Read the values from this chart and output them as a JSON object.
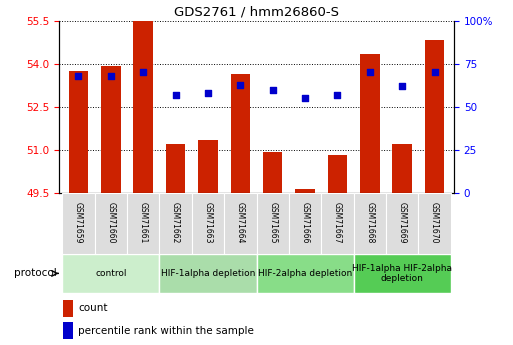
{
  "title": "GDS2761 / hmm26860-S",
  "samples": [
    "GSM71659",
    "GSM71660",
    "GSM71661",
    "GSM71662",
    "GSM71663",
    "GSM71664",
    "GSM71665",
    "GSM71666",
    "GSM71667",
    "GSM71668",
    "GSM71669",
    "GSM71670"
  ],
  "counts": [
    53.75,
    53.92,
    55.5,
    51.2,
    51.35,
    53.65,
    50.93,
    49.65,
    50.82,
    54.35,
    51.2,
    54.82
  ],
  "percentile_ranks": [
    68,
    68,
    70,
    57,
    58,
    63,
    60,
    55,
    57,
    70,
    62,
    70
  ],
  "y_min": 49.5,
  "y_max": 55.5,
  "y_ticks": [
    49.5,
    51.0,
    52.5,
    54.0,
    55.5
  ],
  "y_right_ticks": [
    0,
    25,
    50,
    75,
    100
  ],
  "bar_color": "#cc2200",
  "dot_color": "#0000cc",
  "bar_width": 0.6,
  "protocol_groups": [
    {
      "label": "control",
      "start": 0,
      "end": 2,
      "color": "#cceecc"
    },
    {
      "label": "HIF-1alpha depletion",
      "start": 3,
      "end": 5,
      "color": "#aaddaa"
    },
    {
      "label": "HIF-2alpha depletion",
      "start": 6,
      "end": 8,
      "color": "#88dd88"
    },
    {
      "label": "HIF-1alpha HIF-2alpha\ndepletion",
      "start": 9,
      "end": 11,
      "color": "#55cc55"
    }
  ],
  "legend_count_label": "count",
  "legend_pct_label": "percentile rank within the sample",
  "protocol_label": "protocol"
}
